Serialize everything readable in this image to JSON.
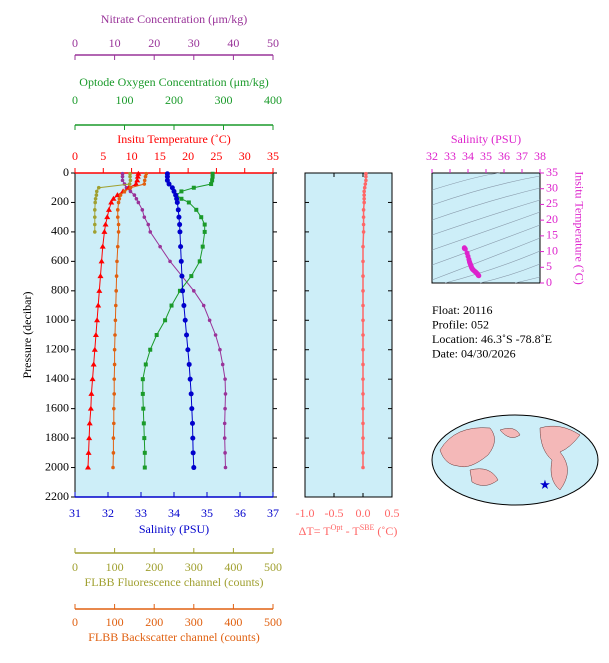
{
  "chart_data": [
    {
      "type": "profile",
      "ylabel": "Pressure (decibar)",
      "ylim": [
        0,
        2200
      ],
      "yticks": [
        0,
        200,
        400,
        600,
        800,
        1000,
        1200,
        1400,
        1600,
        1800,
        2000,
        2200
      ],
      "pressure": [
        5,
        25,
        50,
        75,
        100,
        125,
        150,
        175,
        200,
        250,
        300,
        350,
        400,
        500,
        600,
        700,
        800,
        900,
        1000,
        1100,
        1200,
        1300,
        1400,
        1500,
        1600,
        1700,
        1800,
        1900,
        2000
      ],
      "pressure_shallow": [
        5,
        25,
        50,
        75,
        100,
        125,
        150,
        175,
        200,
        250,
        300,
        350,
        400
      ],
      "x_axes": [
        {
          "title": "Nitrate Concentration (μm/kg)",
          "xlim": [
            0,
            50
          ],
          "xticks": [
            0,
            10,
            20,
            30,
            40,
            50
          ],
          "color": "#993399"
        },
        {
          "title": "Optode Oxygen Concentration (μm/kg)",
          "xlim": [
            0,
            400
          ],
          "xticks": [
            0,
            100,
            200,
            300,
            400
          ],
          "color": "#1a9a2a"
        },
        {
          "title": "Insitu Temperature (˚C)",
          "xlim": [
            0,
            35
          ],
          "xticks": [
            0,
            5,
            10,
            15,
            20,
            25,
            30,
            35
          ],
          "color": "#ff0000"
        },
        {
          "title": "Salinity (PSU)",
          "xlim": [
            31,
            37
          ],
          "xticks": [
            31,
            32,
            33,
            34,
            35,
            36,
            37
          ],
          "color": "#0000cc"
        },
        {
          "title": "FLBB Fluorescence channel (counts)",
          "xlim": [
            0,
            500
          ],
          "xticks": [
            0,
            100,
            200,
            300,
            400,
            500
          ],
          "color": "#a0a030"
        },
        {
          "title": "FLBB Backscatter channel (counts)",
          "xlim": [
            0,
            500
          ],
          "xticks": [
            0,
            100,
            200,
            300,
            400,
            500
          ],
          "color": "#e06010"
        }
      ],
      "series": [
        {
          "x_axis": 0,
          "color": "#993399",
          "pressure_key": "pressure",
          "values": [
            12,
            12,
            12,
            12.5,
            13,
            14,
            15,
            15.5,
            16,
            17,
            17.5,
            18.5,
            19,
            21.5,
            24,
            27,
            30,
            32.5,
            34,
            35.5,
            36.6,
            37.3,
            37.9,
            38,
            37.9,
            37.8,
            37.8,
            37.9,
            38
          ]
        },
        {
          "x_axis": 1,
          "color": "#1a9a2a",
          "pressure_key": "pressure",
          "values": [
            278,
            278,
            277,
            275,
            240,
            215,
            205,
            215,
            230,
            245,
            255,
            262,
            262,
            258,
            252,
            235,
            212,
            195,
            182,
            165,
            152,
            143,
            137,
            137,
            138,
            139,
            140,
            141,
            141
          ]
        },
        {
          "x_axis": 2,
          "color": "#ff0000",
          "pressure_key": "pressure",
          "values": [
            11.2,
            11.1,
            11.0,
            10.8,
            9.5,
            8.5,
            7.5,
            6.8,
            6.4,
            6.0,
            5.7,
            5.4,
            5.2,
            4.9,
            4.7,
            4.5,
            4.3,
            4.1,
            3.9,
            3.7,
            3.5,
            3.3,
            3.1,
            2.9,
            2.8,
            2.6,
            2.5,
            2.4,
            2.3
          ]
        },
        {
          "x_axis": 3,
          "color": "#0000cc",
          "pressure_key": "pressure",
          "values": [
            33.8,
            33.8,
            33.8,
            33.85,
            33.95,
            34.0,
            34.05,
            34.08,
            34.1,
            34.13,
            34.15,
            34.17,
            34.18,
            34.2,
            34.22,
            34.24,
            34.26,
            34.3,
            34.34,
            34.38,
            34.42,
            34.46,
            34.49,
            34.52,
            34.54,
            34.56,
            34.57,
            34.58,
            34.6
          ]
        },
        {
          "x_axis": 4,
          "color": "#a0a030",
          "pressure_key": "pressure_shallow",
          "values": [
            139,
            139,
            140,
            138,
            60,
            55,
            54,
            52,
            51,
            50,
            50,
            50,
            50
          ]
        },
        {
          "x_axis": 5,
          "color": "#e06010",
          "pressure_key": "pressure",
          "values": [
            180,
            178,
            176,
            175,
            140,
            125,
            115,
            112,
            110,
            108,
            108,
            110,
            110,
            108,
            106,
            105,
            104,
            103,
            102,
            101,
            100,
            100,
            99,
            99,
            98,
            98,
            97,
            97,
            96
          ]
        }
      ]
    },
    {
      "type": "delta",
      "title_parts": [
        "ΔT= T",
        "Opt",
        " - T",
        "SBE",
        " (˚C)"
      ],
      "xlim": [
        -1,
        0.5
      ],
      "xticks": [
        {
          "value": -1,
          "label": "-1.0"
        },
        -0.5,
        {
          "value": 0,
          "label": "0.0"
        },
        0.5
      ],
      "color": "#ff6666",
      "values": [
        0.05,
        0.05,
        0.05,
        0.04,
        0.03,
        0.02,
        0.02,
        0.02,
        0.02,
        0.01,
        0.01,
        0.01,
        0.01,
        0,
        0,
        0,
        0,
        0,
        0,
        0,
        0,
        0,
        0,
        0,
        0,
        0,
        0,
        0,
        0
      ]
    },
    {
      "type": "ts",
      "xlabel": "Salinity (PSU)",
      "ylabel": "Insitu Temperature (˚C)",
      "xlim": [
        32,
        38
      ],
      "xticks": [
        32,
        33,
        34,
        35,
        36,
        37,
        38
      ],
      "ylim": [
        0,
        35
      ],
      "yticks": [
        0,
        5,
        10,
        15,
        20,
        25,
        30,
        35
      ],
      "color": "#dd22cc"
    }
  ],
  "info": [
    "Float:  20116",
    "Profile:  052",
    "Location:  46.3˚S  -78.8˚E",
    "Date:  04/30/2026"
  ]
}
